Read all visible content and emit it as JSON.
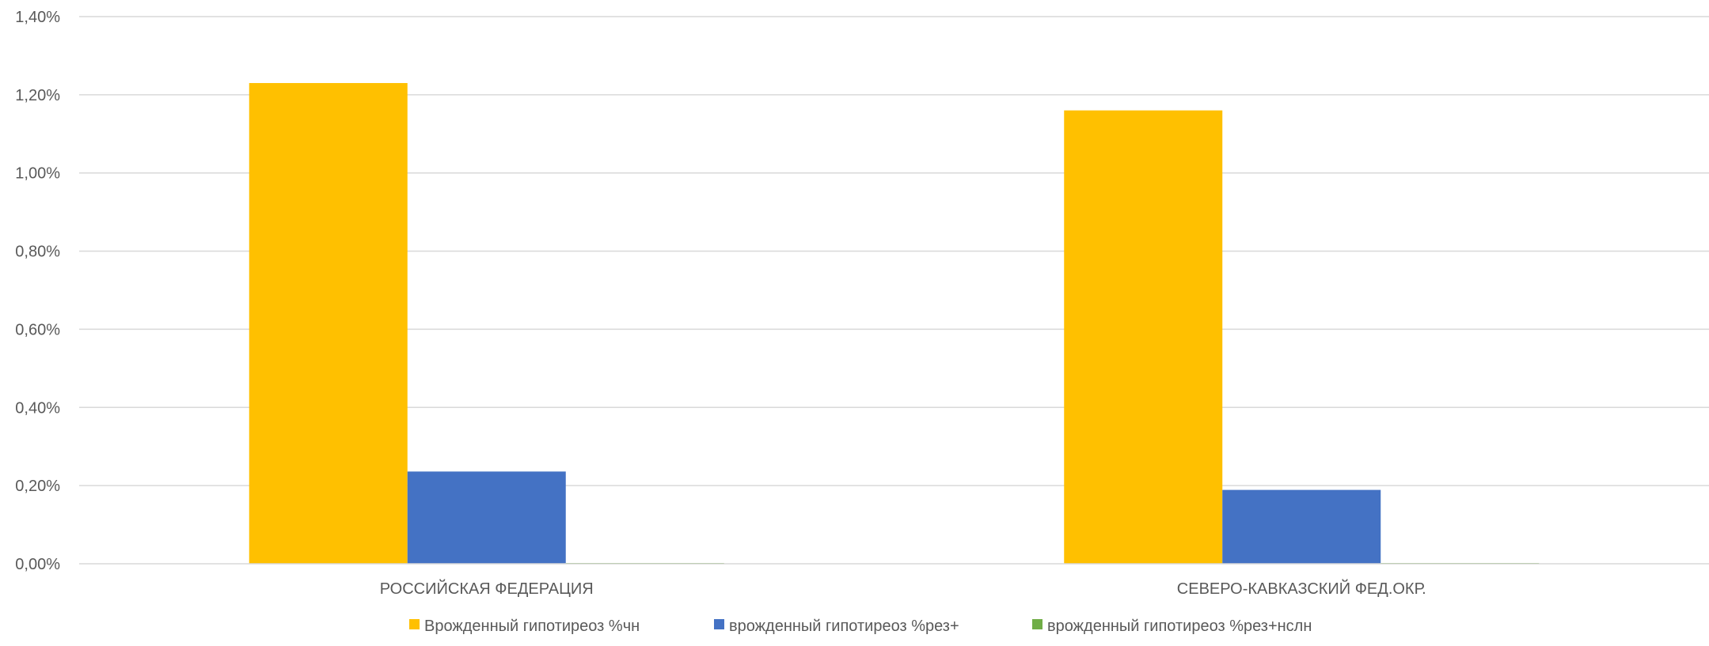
{
  "chart_data": {
    "type": "bar",
    "title": "",
    "xlabel": "",
    "ylabel": "",
    "categories": [
      "РОССИЙСКАЯ ФЕДЕРАЦИЯ",
      "СЕВЕРО-КАВКАЗСКИЙ ФЕД.ОКР."
    ],
    "series": [
      {
        "name": "Врожденный гипотиреоз %чн",
        "values": [
          1.23,
          1.16
        ],
        "color": "#FFC000"
      },
      {
        "name": "врожденный гипотиреоз %рез+",
        "values": [
          0.236,
          0.189
        ],
        "color": "#4472C4"
      },
      {
        "name": "врожденный гипотиреоз %рез+нслн",
        "values": [
          0.002,
          0.001
        ],
        "color": "#70AD47"
      }
    ],
    "ylim": [
      0,
      1.4
    ],
    "yticks": [
      0,
      0.2,
      0.4,
      0.6,
      0.8,
      1.0,
      1.2,
      1.4
    ],
    "ytick_labels": [
      "0,00%",
      "0,20%",
      "0,40%",
      "0,60%",
      "0,80%",
      "1,00%",
      "1,20%",
      "1,40%"
    ],
    "grid": true,
    "legend_position": "bottom"
  }
}
